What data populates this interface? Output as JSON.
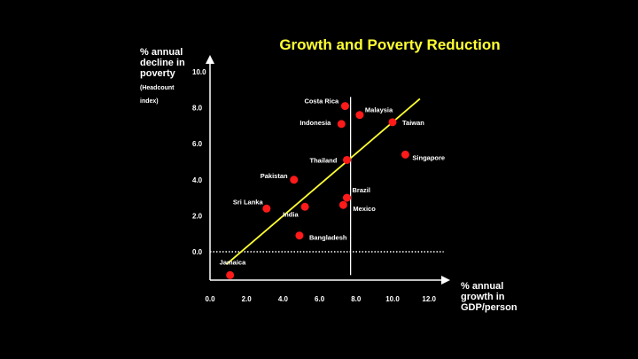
{
  "chart_data": {
    "type": "scatter",
    "title": "Growth and Poverty Reduction",
    "ylabel_lines": [
      "% annual",
      "decline in",
      "poverty"
    ],
    "ylabel_sub_lines": [
      "(Headcount",
      "index)"
    ],
    "xlabel_lines": [
      "% annual",
      "growth in",
      "GDP/person"
    ],
    "x_ticks": [
      "0.0",
      "2.0",
      "4.0",
      "6.0",
      "8.0",
      "10.0",
      "12.0"
    ],
    "y_ticks": [
      "0.0",
      "2.0",
      "4.0",
      "6.0",
      "8.0",
      "10.0"
    ],
    "xlim": [
      0,
      12
    ],
    "ylim": [
      -1.5,
      10
    ],
    "points": [
      {
        "label": "Costa Rica",
        "x": 7.4,
        "y": 8.1
      },
      {
        "label": "Malaysia",
        "x": 8.2,
        "y": 7.6
      },
      {
        "label": "Indonesia",
        "x": 7.2,
        "y": 7.1
      },
      {
        "label": "Taiwan",
        "x": 10.0,
        "y": 7.2
      },
      {
        "label": "Thailand",
        "x": 7.5,
        "y": 5.1
      },
      {
        "label": "Singapore",
        "x": 10.7,
        "y": 5.4
      },
      {
        "label": "Pakistan",
        "x": 4.6,
        "y": 4.0
      },
      {
        "label": "Brazil",
        "x": 7.5,
        "y": 3.0
      },
      {
        "label": "Sri Lanka",
        "x": 3.1,
        "y": 2.4
      },
      {
        "label": "India",
        "x": 5.2,
        "y": 2.5
      },
      {
        "label": "Mexico",
        "x": 7.3,
        "y": 2.6
      },
      {
        "label": "Bangladesh",
        "x": 4.9,
        "y": 0.9
      },
      {
        "label": "Jamaica",
        "x": 1.1,
        "y": -1.3
      }
    ],
    "trend_line": {
      "x1": 0.9,
      "y1": -0.7,
      "x2": 11.5,
      "y2": 8.5
    },
    "vertical_ref_x": 7.7,
    "zero_line": "dotted",
    "colors": {
      "points": "#ff1a1a",
      "trend": "#ffff33",
      "title": "#ffff33",
      "background": "#000000"
    }
  }
}
